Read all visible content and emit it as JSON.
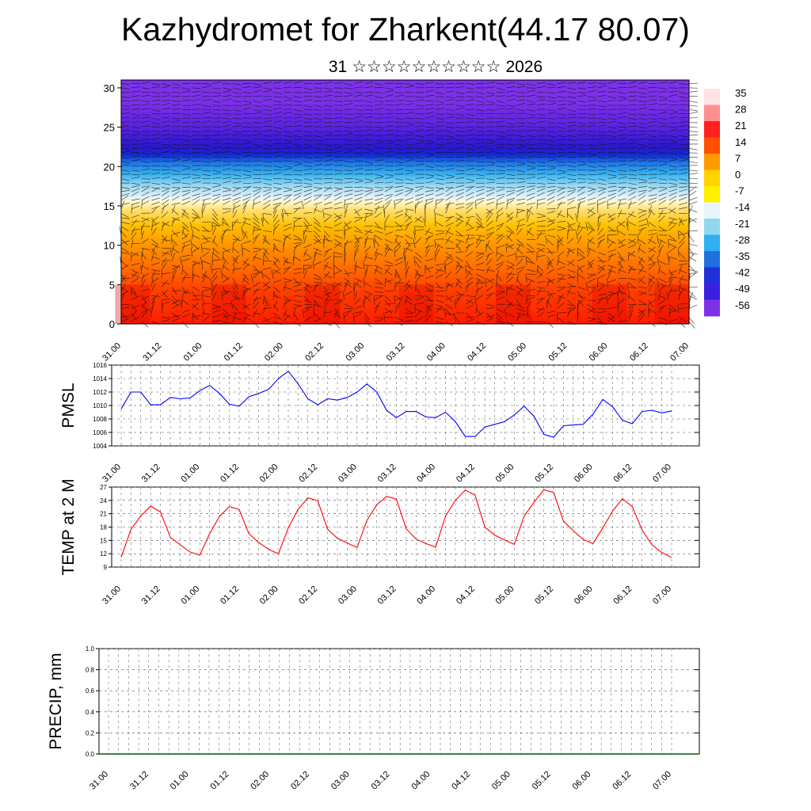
{
  "header": {
    "title": "Kazhydromet for Zharkent(44.17 80.07)",
    "subtitle_day": "31",
    "subtitle_month": "☆☆☆☆☆☆☆☆☆☆",
    "subtitle_year": "2026"
  },
  "chart_data": [
    {
      "type": "heatmap",
      "name": "vertical-cross-section",
      "title": "",
      "x_tick_labels": [
        "31.00",
        "31.12",
        "01.00",
        "01.12",
        "02.00",
        "02.12",
        "03.00",
        "03.12",
        "04.00",
        "04.12",
        "05.00",
        "05.12",
        "06.00",
        "06.12",
        "07.00"
      ],
      "y_ticks": [
        0,
        5,
        10,
        15,
        20,
        25,
        30
      ],
      "ylim": [
        0,
        31
      ],
      "colorbar_labels": [
        "35",
        "28",
        "21",
        "14",
        "7",
        "0",
        "-7",
        "-14",
        "-21",
        "-28",
        "-35",
        "-42",
        "-49",
        "-56"
      ],
      "colorbar_colors": [
        "#ffe4e4",
        "#ff9090",
        "#ff2020",
        "#ff5000",
        "#ff9a00",
        "#ffd200",
        "#fff000",
        "#e8f5fa",
        "#90d8f0",
        "#30b0f0",
        "#2070e0",
        "#2030d8",
        "#3b1fe0",
        "#7c32e8"
      ],
      "temperature_by_level_description": "warm red near surface, cold violet aloft"
    },
    {
      "type": "line",
      "name": "pmsl",
      "ylabel": "PMSL",
      "ylim": [
        1004,
        1016
      ],
      "y_ticks": [
        1004,
        1006,
        1008,
        1010,
        1012,
        1014,
        1016
      ],
      "x_tick_labels": [
        "31.00",
        "31.12",
        "01.00",
        "01.12",
        "02.00",
        "02.12",
        "03.00",
        "03.12",
        "04.00",
        "04.12",
        "05.00",
        "05.12",
        "06.00",
        "06.12",
        "07.00"
      ],
      "line_color": "#0000ff",
      "x": [
        0,
        1,
        2,
        3,
        4,
        5,
        6,
        7,
        8,
        9,
        10,
        11,
        12,
        13,
        14,
        15,
        16,
        17,
        18,
        19,
        20,
        21,
        22,
        23,
        24,
        25,
        26,
        27,
        28,
        29,
        30,
        31,
        32,
        33,
        34,
        35,
        36,
        37,
        38,
        39,
        40,
        41,
        42,
        43,
        44,
        45,
        46,
        47,
        48,
        49,
        50,
        51,
        52,
        53,
        54,
        55,
        56
      ],
      "values": [
        1009.5,
        1012.0,
        1012.0,
        1010.1,
        1010.1,
        1011.2,
        1011.0,
        1011.1,
        1012.2,
        1013.0,
        1011.8,
        1010.2,
        1009.9,
        1011.3,
        1011.8,
        1012.4,
        1014.0,
        1015.1,
        1013.2,
        1011.0,
        1010.1,
        1011.0,
        1010.8,
        1011.2,
        1012.0,
        1013.2,
        1012.0,
        1009.3,
        1008.2,
        1009.1,
        1009.1,
        1008.3,
        1008.2,
        1009.0,
        1007.6,
        1005.4,
        1005.4,
        1006.8,
        1007.2,
        1007.6,
        1008.6,
        1009.9,
        1008.4,
        1005.7,
        1005.3,
        1007.0,
        1007.1,
        1007.2,
        1008.7,
        1010.9,
        1009.8,
        1007.8,
        1007.3,
        1009.1,
        1009.3,
        1008.9,
        1009.2
      ]
    },
    {
      "type": "line",
      "name": "temp-2m",
      "ylabel": "TEMP at 2 M",
      "ylim": [
        9,
        27
      ],
      "y_ticks": [
        9,
        12,
        15,
        18,
        21,
        24,
        27
      ],
      "x_tick_labels": [
        "31.00",
        "31.12",
        "01.00",
        "01.12",
        "02.00",
        "02.12",
        "03.00",
        "03.12",
        "04.00",
        "04.12",
        "05.00",
        "05.12",
        "06.00",
        "06.12",
        "07.00"
      ],
      "line_color": "#ff0000",
      "x": [
        0,
        1,
        2,
        3,
        4,
        5,
        6,
        7,
        8,
        9,
        10,
        11,
        12,
        13,
        14,
        15,
        16,
        17,
        18,
        19,
        20,
        21,
        22,
        23,
        24,
        25,
        26,
        27,
        28,
        29,
        30,
        31,
        32,
        33,
        34,
        35,
        36,
        37,
        38,
        39,
        40,
        41,
        42,
        43,
        44,
        45,
        46,
        47,
        48,
        49,
        50,
        51,
        52,
        53,
        54,
        55,
        56
      ],
      "values": [
        11.2,
        17.5,
        20.5,
        22.7,
        21.4,
        15.7,
        14.0,
        12.4,
        11.7,
        16.5,
        20.4,
        22.6,
        22.0,
        16.5,
        14.5,
        13.0,
        12.0,
        17.8,
        22.0,
        24.6,
        23.9,
        17.5,
        15.5,
        14.4,
        13.4,
        19.5,
        23.0,
        24.9,
        24.3,
        17.6,
        15.3,
        14.3,
        13.5,
        20.5,
        24.0,
        26.3,
        25.2,
        18.0,
        16.2,
        15.1,
        14.1,
        20.5,
        23.6,
        26.4,
        25.8,
        19.3,
        17.2,
        15.2,
        14.3,
        17.8,
        21.6,
        24.4,
        22.6,
        17.3,
        14.0,
        12.3,
        11.1
      ]
    },
    {
      "type": "bar",
      "name": "precip",
      "ylabel": "PRECIP, mm",
      "ylim": [
        0.0,
        1.0
      ],
      "y_ticks": [
        "0.0",
        "0.2",
        "0.4",
        "0.6",
        "0.8",
        "1.0"
      ],
      "x_tick_labels": [
        "31.00",
        "31.12",
        "01.00",
        "01.12",
        "02.00",
        "02.12",
        "03.00",
        "03.12",
        "04.00",
        "04.12",
        "05.00",
        "05.12",
        "06.00",
        "06.12",
        "07.00"
      ],
      "bar_color": "#00aa00",
      "x": [
        0,
        1,
        2,
        3,
        4,
        5,
        6,
        7,
        8,
        9,
        10,
        11,
        12,
        13,
        14,
        15,
        16,
        17,
        18,
        19,
        20,
        21,
        22,
        23,
        24,
        25,
        26,
        27,
        28,
        29,
        30,
        31,
        32,
        33,
        34,
        35,
        36,
        37,
        38,
        39,
        40,
        41,
        42,
        43,
        44,
        45,
        46,
        47,
        48,
        49,
        50,
        51,
        52,
        53,
        54,
        55,
        56
      ],
      "values": [
        0,
        0,
        0,
        0,
        0,
        0,
        0,
        0,
        0,
        0,
        0,
        0,
        0,
        0,
        0,
        0,
        0,
        0,
        0,
        0,
        0,
        0,
        0,
        0,
        0,
        0,
        0,
        0,
        0,
        0,
        0,
        0,
        0,
        0,
        0,
        0,
        0,
        0,
        0,
        0,
        0,
        0,
        0,
        0,
        0,
        0,
        0,
        0,
        0,
        0,
        0,
        0,
        0,
        0,
        0,
        0,
        0
      ]
    }
  ]
}
